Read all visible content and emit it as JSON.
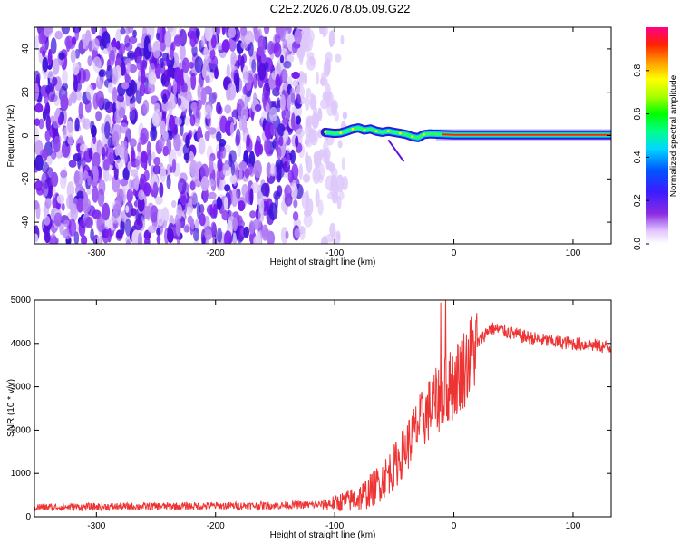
{
  "title": "C2E2.2026.078.05.09.G22",
  "chart_data": [
    {
      "type": "heatmap",
      "xlabel": "Height of straight line (km)",
      "ylabel": "Frequency (Hz)",
      "xlim": [
        -352,
        132
      ],
      "ylim": [
        -50,
        50
      ],
      "xticks": [
        -300,
        -200,
        -100,
        0,
        100
      ],
      "yticks": [
        -40,
        -20,
        0,
        20,
        40
      ],
      "noise_region_x": [
        -352,
        -90
      ],
      "signal_track": {
        "x": [
          -108,
          -100,
          -95,
          -90,
          -85,
          -80,
          -75,
          -70,
          -65,
          -60,
          -55,
          -50,
          -45,
          -40,
          -35,
          -30,
          -25,
          -20,
          -10,
          0,
          50,
          100,
          132
        ],
        "y": [
          1.5,
          1.0,
          1.2,
          2.0,
          3.0,
          3.5,
          2.5,
          3.0,
          2.0,
          1.5,
          2.0,
          1.5,
          1.0,
          0.5,
          -0.5,
          -1.0,
          0.5,
          0.8,
          0.5,
          0.3,
          0.3,
          0.3,
          0.3
        ]
      },
      "colorbar": {
        "label": "Normalized spectral amplitude",
        "ticks": [
          "0.0",
          "0.2",
          "0.4",
          "0.6",
          "0.8"
        ],
        "range": [
          0,
          1
        ]
      }
    },
    {
      "type": "line",
      "xlabel": "Height of straight line (km)",
      "ylabel": "SNR (10 * v/v)",
      "xlim": [
        -352,
        132
      ],
      "ylim": [
        0,
        5000
      ],
      "xticks": [
        -300,
        -200,
        -100,
        0,
        100
      ],
      "yticks": [
        0,
        1000,
        2000,
        3000,
        4000,
        5000
      ],
      "series": [
        {
          "color": "#ee3333",
          "x": [
            -352,
            -300,
            -250,
            -200,
            -150,
            -110,
            -100,
            -90,
            -80,
            -70,
            -60,
            -50,
            -40,
            -30,
            -20,
            -10,
            0,
            10,
            20,
            30,
            40,
            60,
            80,
            100,
            120,
            132
          ],
          "y": [
            220,
            230,
            240,
            250,
            260,
            280,
            320,
            360,
            430,
            600,
            850,
            1150,
            1600,
            2100,
            2500,
            2800,
            3100,
            3500,
            4000,
            4350,
            4300,
            4150,
            4050,
            4000,
            3950,
            3900
          ]
        }
      ]
    }
  ]
}
